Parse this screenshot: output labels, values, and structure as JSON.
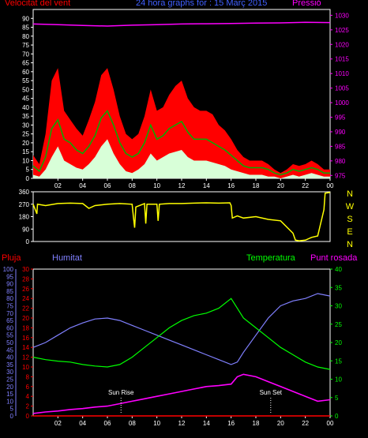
{
  "header": {
    "left": "Velocitat del vent",
    "center": "24 hora graphs for : 15 Març 2015",
    "right": "Pressió"
  },
  "bottom_header": {
    "pluja": "Pluja",
    "humitat": "Humitat",
    "temperatura": "Temperatura",
    "punt_rosada": "Punt rosada"
  },
  "compass": [
    "N",
    "W",
    "S",
    "E",
    "N"
  ],
  "annotations": {
    "sunrise": "Sun Rise",
    "sunset": "Sun Set"
  },
  "colors": {
    "wind_gust": "#ff0000",
    "wind_avg": "#00b000",
    "wind_min": "#d8ffd8",
    "pressure": "#ff00ff",
    "direction": "#ffff00",
    "humidity": "#8080ff",
    "temperature": "#00ff00",
    "dewpoint": "#ff00ff",
    "rain": "#ff0000",
    "axis": "#ffffff"
  },
  "chart_data": [
    {
      "type": "area",
      "name": "wind-pressure",
      "x_ticks": [
        "02",
        "04",
        "06",
        "08",
        "10",
        "12",
        "14",
        "16",
        "18",
        "20",
        "22",
        "00"
      ],
      "y_left_ticks": [
        0,
        5,
        10,
        15,
        20,
        25,
        30,
        35,
        40,
        45,
        50,
        55,
        60,
        65,
        70,
        75,
        80,
        85,
        90
      ],
      "y_left_range": [
        0,
        95
      ],
      "y_right_ticks": [
        975,
        980,
        985,
        990,
        995,
        1000,
        1005,
        1010,
        1015,
        1020,
        1025,
        1030
      ],
      "y_right_range": [
        974,
        1032
      ],
      "wind_gust": [
        [
          0,
          13
        ],
        [
          0.5,
          8
        ],
        [
          1,
          25
        ],
        [
          1.5,
          55
        ],
        [
          2,
          62
        ],
        [
          2.5,
          38
        ],
        [
          3,
          33
        ],
        [
          3.5,
          28
        ],
        [
          4,
          24
        ],
        [
          4.5,
          33
        ],
        [
          5,
          43
        ],
        [
          5.5,
          58
        ],
        [
          6,
          62
        ],
        [
          6.5,
          50
        ],
        [
          7,
          35
        ],
        [
          7.5,
          25
        ],
        [
          8,
          22
        ],
        [
          8.5,
          25
        ],
        [
          9,
          35
        ],
        [
          9.5,
          50
        ],
        [
          10,
          38
        ],
        [
          10.5,
          40
        ],
        [
          11,
          47
        ],
        [
          11.5,
          52
        ],
        [
          12,
          55
        ],
        [
          12.5,
          45
        ],
        [
          13,
          40
        ],
        [
          13.5,
          38
        ],
        [
          14,
          38
        ],
        [
          14.5,
          36
        ],
        [
          15,
          30
        ],
        [
          15.5,
          27
        ],
        [
          16,
          22
        ],
        [
          16.5,
          16
        ],
        [
          17,
          12
        ],
        [
          17.5,
          10
        ],
        [
          18,
          10
        ],
        [
          18.5,
          10
        ],
        [
          19,
          8
        ],
        [
          19.5,
          5
        ],
        [
          20,
          3
        ],
        [
          20.5,
          5
        ],
        [
          21,
          8
        ],
        [
          21.5,
          7
        ],
        [
          22,
          8
        ],
        [
          22.5,
          10
        ],
        [
          23,
          8
        ],
        [
          23.5,
          5
        ],
        [
          24,
          5
        ]
      ],
      "wind_avg": [
        [
          0,
          7
        ],
        [
          0.5,
          4
        ],
        [
          1,
          12
        ],
        [
          1.5,
          28
        ],
        [
          2,
          33
        ],
        [
          2.5,
          22
        ],
        [
          3,
          20
        ],
        [
          3.5,
          16
        ],
        [
          4,
          14
        ],
        [
          4.5,
          18
        ],
        [
          5,
          24
        ],
        [
          5.5,
          34
        ],
        [
          6,
          38
        ],
        [
          6.5,
          30
        ],
        [
          7,
          20
        ],
        [
          7.5,
          14
        ],
        [
          8,
          12
        ],
        [
          8.5,
          14
        ],
        [
          9,
          20
        ],
        [
          9.5,
          30
        ],
        [
          10,
          22
        ],
        [
          10.5,
          24
        ],
        [
          11,
          28
        ],
        [
          11.5,
          30
        ],
        [
          12,
          32
        ],
        [
          12.5,
          26
        ],
        [
          13,
          22
        ],
        [
          13.5,
          22
        ],
        [
          14,
          22
        ],
        [
          14.5,
          20
        ],
        [
          15,
          18
        ],
        [
          15.5,
          16
        ],
        [
          16,
          13
        ],
        [
          16.5,
          10
        ],
        [
          17,
          7
        ],
        [
          17.5,
          6
        ],
        [
          18,
          6
        ],
        [
          18.5,
          6
        ],
        [
          19,
          5
        ],
        [
          19.5,
          3
        ],
        [
          20,
          2
        ],
        [
          20.5,
          3
        ],
        [
          21,
          5
        ],
        [
          21.5,
          4
        ],
        [
          22,
          5
        ],
        [
          22.5,
          6
        ],
        [
          23,
          5
        ],
        [
          23.5,
          3
        ],
        [
          24,
          3
        ]
      ],
      "wind_min": [
        [
          0,
          2
        ],
        [
          0.5,
          1
        ],
        [
          1,
          5
        ],
        [
          1.5,
          12
        ],
        [
          2,
          18
        ],
        [
          2.5,
          10
        ],
        [
          3,
          8
        ],
        [
          3.5,
          6
        ],
        [
          4,
          5
        ],
        [
          4.5,
          8
        ],
        [
          5,
          12
        ],
        [
          5.5,
          18
        ],
        [
          6,
          22
        ],
        [
          6.5,
          14
        ],
        [
          7,
          8
        ],
        [
          7.5,
          4
        ],
        [
          8,
          3
        ],
        [
          8.5,
          5
        ],
        [
          9,
          8
        ],
        [
          9.5,
          14
        ],
        [
          10,
          10
        ],
        [
          10.5,
          12
        ],
        [
          11,
          14
        ],
        [
          11.5,
          15
        ],
        [
          12,
          16
        ],
        [
          12.5,
          12
        ],
        [
          13,
          10
        ],
        [
          13.5,
          10
        ],
        [
          14,
          10
        ],
        [
          14.5,
          9
        ],
        [
          15,
          8
        ],
        [
          15.5,
          7
        ],
        [
          16,
          5
        ],
        [
          16.5,
          4
        ],
        [
          17,
          3
        ],
        [
          17.5,
          2
        ],
        [
          18,
          2
        ],
        [
          18.5,
          2
        ],
        [
          19,
          1
        ],
        [
          19.5,
          1
        ],
        [
          20,
          0
        ],
        [
          20.5,
          1
        ],
        [
          21,
          2
        ],
        [
          21.5,
          1
        ],
        [
          22,
          2
        ],
        [
          22.5,
          3
        ],
        [
          23,
          2
        ],
        [
          23.5,
          1
        ],
        [
          24,
          1
        ]
      ],
      "pressure": [
        [
          0,
          1027
        ],
        [
          2,
          1026.8
        ],
        [
          4,
          1026.5
        ],
        [
          6,
          1026.3
        ],
        [
          8,
          1026.6
        ],
        [
          10,
          1026.8
        ],
        [
          12,
          1027
        ],
        [
          14,
          1027.1
        ],
        [
          16,
          1027.2
        ],
        [
          18,
          1027.3
        ],
        [
          20,
          1027.4
        ],
        [
          22,
          1027.6
        ],
        [
          24,
          1027.5
        ]
      ]
    },
    {
      "type": "line",
      "name": "wind-direction",
      "y_ticks": [
        0,
        90,
        180,
        270,
        360
      ],
      "y_range": [
        0,
        360
      ],
      "direction": [
        [
          0,
          270
        ],
        [
          0.3,
          200
        ],
        [
          0.35,
          270
        ],
        [
          1,
          260
        ],
        [
          2,
          275
        ],
        [
          3,
          278
        ],
        [
          4,
          275
        ],
        [
          4.5,
          240
        ],
        [
          5,
          260
        ],
        [
          6,
          270
        ],
        [
          7,
          275
        ],
        [
          8,
          270
        ],
        [
          8.1,
          180
        ],
        [
          8.2,
          100
        ],
        [
          8.3,
          250
        ],
        [
          9,
          275
        ],
        [
          9.1,
          130
        ],
        [
          9.2,
          270
        ],
        [
          10,
          270
        ],
        [
          10.1,
          150
        ],
        [
          10.2,
          270
        ],
        [
          11,
          275
        ],
        [
          12,
          275
        ],
        [
          13,
          278
        ],
        [
          14,
          280
        ],
        [
          15,
          278
        ],
        [
          15.9,
          280
        ],
        [
          16,
          260
        ],
        [
          16.1,
          170
        ],
        [
          16.5,
          185
        ],
        [
          17,
          170
        ],
        [
          18,
          180
        ],
        [
          19,
          160
        ],
        [
          20,
          150
        ],
        [
          21,
          60
        ],
        [
          21.2,
          10
        ],
        [
          21.5,
          5
        ],
        [
          22,
          10
        ],
        [
          22.5,
          30
        ],
        [
          23,
          40
        ],
        [
          23.5,
          230
        ],
        [
          23.6,
          350
        ],
        [
          24,
          355
        ]
      ]
    },
    {
      "type": "line",
      "name": "humidity-temperature",
      "y_rain_ticks": [
        0,
        5,
        10,
        15,
        20,
        25,
        30,
        35,
        40,
        45,
        50,
        55,
        60,
        65,
        70,
        75,
        80,
        85,
        90,
        95,
        100
      ],
      "y_rain_range": [
        0,
        100
      ],
      "y_temp_ticks": [
        0,
        2,
        4,
        6,
        8,
        10,
        12,
        14,
        16,
        18,
        20,
        22,
        24,
        26,
        28,
        30
      ],
      "y_temp_range": [
        0,
        30
      ],
      "y_right_ticks": [
        0,
        5,
        10,
        15,
        20,
        25,
        30,
        35,
        40
      ],
      "y_right_range": [
        0,
        40
      ],
      "humidity": [
        [
          0,
          14
        ],
        [
          1,
          15
        ],
        [
          2,
          16.5
        ],
        [
          3,
          18
        ],
        [
          4,
          19
        ],
        [
          5,
          19.8
        ],
        [
          6,
          20
        ],
        [
          7,
          19.5
        ],
        [
          8,
          18.5
        ],
        [
          9,
          17.5
        ],
        [
          10,
          16.5
        ],
        [
          11,
          15.5
        ],
        [
          12,
          14.5
        ],
        [
          13,
          13.5
        ],
        [
          14,
          12.5
        ],
        [
          15,
          11.5
        ],
        [
          16,
          10.5
        ],
        [
          16.5,
          11
        ],
        [
          17,
          13
        ],
        [
          18,
          16.5
        ],
        [
          19,
          20
        ],
        [
          20,
          22.5
        ],
        [
          21,
          23.5
        ],
        [
          22,
          24
        ],
        [
          23,
          25
        ],
        [
          24,
          24.5
        ]
      ],
      "temperature": [
        [
          0,
          12
        ],
        [
          1,
          11.5
        ],
        [
          2,
          11.2
        ],
        [
          3,
          11
        ],
        [
          4,
          10.5
        ],
        [
          5,
          10.2
        ],
        [
          6,
          10
        ],
        [
          7,
          10.5
        ],
        [
          8,
          12
        ],
        [
          9,
          14
        ],
        [
          10,
          16
        ],
        [
          11,
          18
        ],
        [
          12,
          19.5
        ],
        [
          13,
          20.5
        ],
        [
          14,
          21
        ],
        [
          15,
          22
        ],
        [
          16,
          24
        ],
        [
          16.5,
          22
        ],
        [
          17,
          20
        ],
        [
          18,
          18
        ],
        [
          19,
          16
        ],
        [
          20,
          14
        ],
        [
          21,
          12.5
        ],
        [
          22,
          11
        ],
        [
          23,
          10
        ],
        [
          24,
          9.5
        ]
      ],
      "dewpoint": [
        [
          0,
          0.5
        ],
        [
          1,
          0.8
        ],
        [
          2,
          1
        ],
        [
          3,
          1.3
        ],
        [
          4,
          1.5
        ],
        [
          5,
          1.8
        ],
        [
          6,
          2
        ],
        [
          7,
          2.5
        ],
        [
          8,
          3
        ],
        [
          9,
          3.5
        ],
        [
          10,
          4
        ],
        [
          11,
          4.5
        ],
        [
          12,
          5
        ],
        [
          13,
          5.5
        ],
        [
          14,
          6
        ],
        [
          15,
          6.2
        ],
        [
          16,
          6.5
        ],
        [
          16.5,
          8
        ],
        [
          17,
          8.5
        ],
        [
          18,
          8
        ],
        [
          19,
          7
        ],
        [
          20,
          6
        ],
        [
          21,
          5
        ],
        [
          22,
          4
        ],
        [
          23,
          3
        ],
        [
          24,
          3.3
        ]
      ],
      "rain": [
        [
          0,
          0
        ],
        [
          24,
          0
        ]
      ],
      "sunrise_hour": 7.1,
      "sunset_hour": 19.2
    }
  ]
}
